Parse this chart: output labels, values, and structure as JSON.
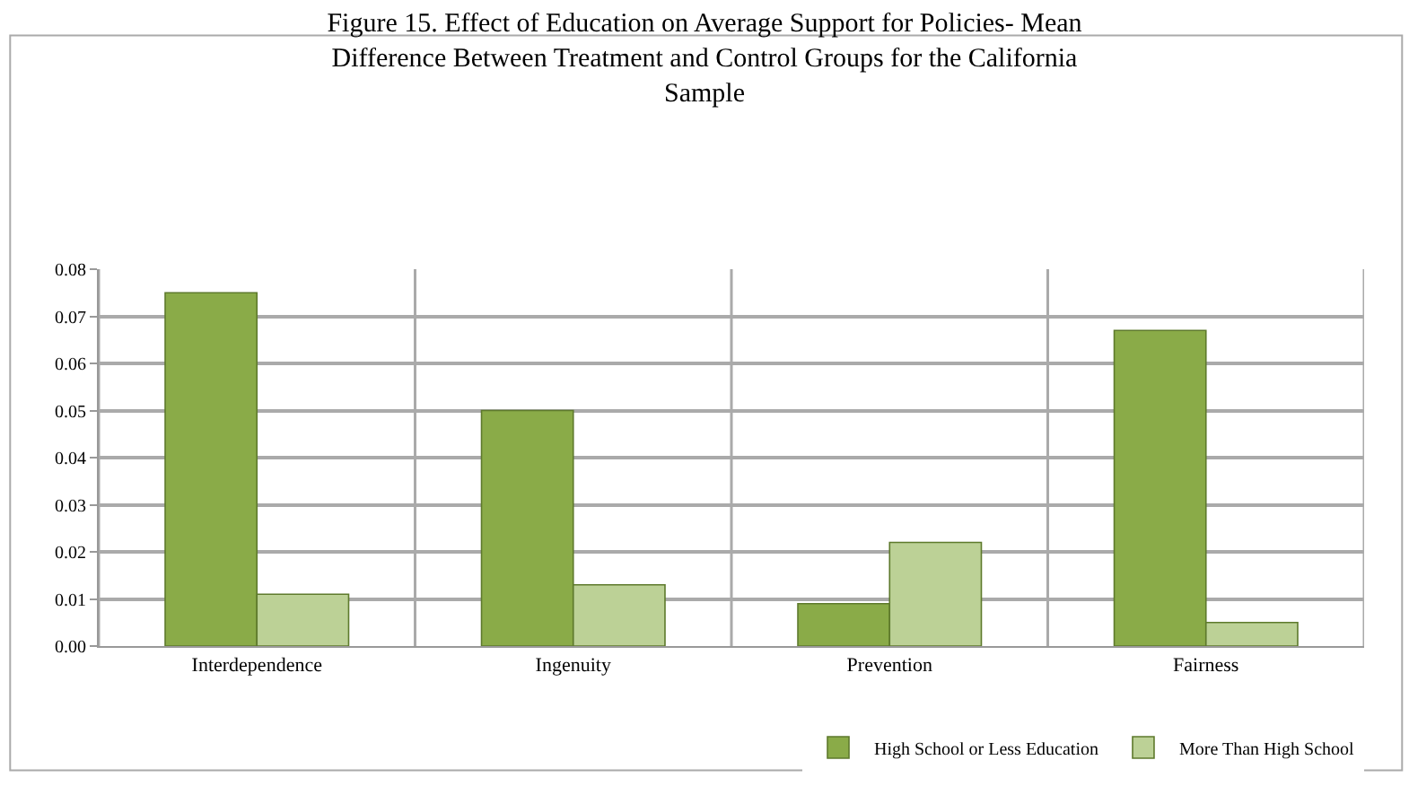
{
  "chart_data": {
    "type": "bar",
    "title": "Figure 15. Effect of Education on Average Support for Policies- Mean Difference Between Treatment and Control Groups for the California Sample",
    "categories": [
      "Interdependence",
      "Ingenuity",
      "Prevention",
      "Fairness"
    ],
    "series": [
      {
        "name": "High School or Less Education",
        "color": "#8aab48",
        "values": [
          0.075,
          0.05,
          0.009,
          0.067
        ]
      },
      {
        "name": "More Than High School",
        "color": "#bcd196",
        "values": [
          0.011,
          0.013,
          0.022,
          0.005
        ]
      }
    ],
    "ylim": [
      0,
      0.08
    ],
    "yticks": [
      {
        "value": 0,
        "label": "0.00"
      },
      {
        "value": 0.01,
        "label": "0.01"
      },
      {
        "value": 0.02,
        "label": "0.02"
      },
      {
        "value": 0.03,
        "label": "0.03"
      },
      {
        "value": 0.04,
        "label": "0.04"
      },
      {
        "value": 0.05,
        "label": "0.05"
      },
      {
        "value": 0.06,
        "label": "0.06"
      },
      {
        "value": 0.07,
        "label": "0.07"
      },
      {
        "value": 0.08,
        "label": "0.08"
      }
    ],
    "grid": true,
    "legend": "bottom right"
  }
}
